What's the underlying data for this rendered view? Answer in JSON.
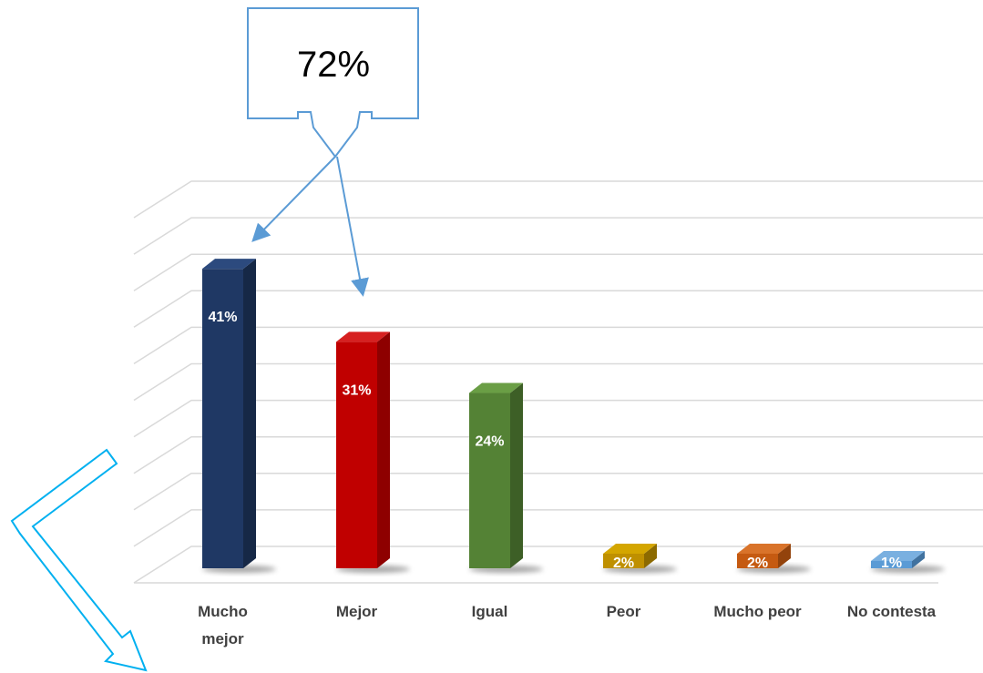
{
  "callout": {
    "text": "72%",
    "border_color": "#5B9BD5"
  },
  "chart_data": {
    "type": "bar",
    "style": "3d-column",
    "categories": [
      "Mucho mejor",
      "Mejor",
      "Igual",
      "Peor",
      "Mucho peor",
      "No contesta"
    ],
    "values": [
      41,
      31,
      24,
      2,
      2,
      1
    ],
    "data_labels": [
      "41%",
      "31%",
      "24%",
      "2%",
      "2%",
      "1%"
    ],
    "ylim": [
      0,
      50
    ],
    "grid": true,
    "legend": "none",
    "title": "",
    "xlabel": "",
    "ylabel": "",
    "colors": [
      "#1F3864",
      "#C00000",
      "#548235",
      "#BF9000",
      "#C55A11",
      "#5B9BD5"
    ],
    "side_colors": [
      "#162846",
      "#8E0000",
      "#3D5F26",
      "#8C6A00",
      "#93430C",
      "#41729F"
    ],
    "top_colors": [
      "#2C4A7E",
      "#D62020",
      "#6A9E45",
      "#D4A600",
      "#D9732A",
      "#7AB0E0"
    ]
  },
  "decorations": {
    "callout_arrow_color": "#5B9BD5",
    "bottom_arrow_color": "#00B0F0"
  }
}
